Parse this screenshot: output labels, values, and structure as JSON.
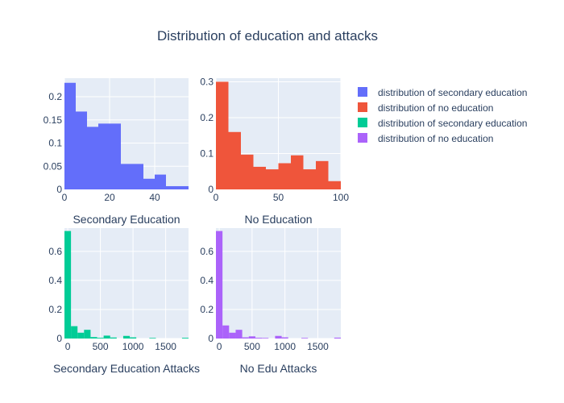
{
  "title": "Distribution of education and attacks",
  "chart_data": [
    {
      "type": "bar",
      "name": "secondary-education",
      "color": "#636efa",
      "xlabel": "Secondary Education",
      "xlim": [
        0,
        55
      ],
      "ylim": [
        0,
        0.24
      ],
      "xticks": [
        0,
        20,
        40
      ],
      "yticks": [
        0,
        0.05,
        0.1,
        0.15,
        0.2
      ],
      "ytick_labels": [
        "0",
        "0.05",
        "0.1",
        "0.15",
        "0.2"
      ],
      "bins": [
        [
          0,
          5,
          0.23
        ],
        [
          5,
          10,
          0.168
        ],
        [
          10,
          15,
          0.135
        ],
        [
          15,
          20,
          0.142
        ],
        [
          20,
          25,
          0.142
        ],
        [
          25,
          30,
          0.055
        ],
        [
          30,
          35,
          0.055
        ],
        [
          35,
          40,
          0.023
        ],
        [
          40,
          45,
          0.032
        ],
        [
          45,
          50,
          0.007
        ],
        [
          50,
          55,
          0.007
        ]
      ]
    },
    {
      "type": "bar",
      "name": "no-education",
      "color": "#ef553b",
      "xlabel": "No Education",
      "xlim": [
        0,
        100
      ],
      "ylim": [
        0,
        0.31
      ],
      "xticks": [
        0,
        50,
        100
      ],
      "yticks": [
        0,
        0.1,
        0.2,
        0.3
      ],
      "ytick_labels": [
        "0",
        "0.1",
        "0.2",
        "0.3"
      ],
      "bins": [
        [
          0,
          10,
          0.3
        ],
        [
          10,
          20,
          0.16
        ],
        [
          20,
          30,
          0.097
        ],
        [
          30,
          40,
          0.063
        ],
        [
          40,
          50,
          0.056
        ],
        [
          50,
          60,
          0.073
        ],
        [
          60,
          70,
          0.095
        ],
        [
          70,
          80,
          0.056
        ],
        [
          80,
          90,
          0.079
        ],
        [
          90,
          100,
          0.023
        ]
      ]
    },
    {
      "type": "bar",
      "name": "secondary-education-attacks",
      "color": "#00cc96",
      "xlabel": "Secondary Education Attacks",
      "xlim": [
        -50,
        1850
      ],
      "ylim": [
        0,
        0.76
      ],
      "xticks": [
        0,
        500,
        1000,
        1500
      ],
      "yticks": [
        0,
        0.2,
        0.4,
        0.6
      ],
      "ytick_labels": [
        "0",
        "0.2",
        "0.4",
        "0.6"
      ],
      "bins": [
        [
          -50,
          50,
          0.74
        ],
        [
          50,
          150,
          0.085
        ],
        [
          150,
          250,
          0.04
        ],
        [
          250,
          350,
          0.06
        ],
        [
          350,
          450,
          0.01
        ],
        [
          450,
          550,
          0.005
        ],
        [
          550,
          650,
          0.02
        ],
        [
          650,
          750,
          0.007
        ],
        [
          850,
          950,
          0.018
        ],
        [
          950,
          1050,
          0.008
        ],
        [
          1250,
          1350,
          0.004
        ],
        [
          1750,
          1850,
          0.005
        ]
      ]
    },
    {
      "type": "bar",
      "name": "no-edu-attacks",
      "color": "#ab63fa",
      "xlabel": "No Edu Attacks",
      "xlim": [
        -50,
        1850
      ],
      "ylim": [
        0,
        0.76
      ],
      "xticks": [
        0,
        500,
        1000,
        1500
      ],
      "yticks": [
        0,
        0.2,
        0.4,
        0.6
      ],
      "ytick_labels": [
        "0",
        "0.2",
        "0.4",
        "0.6"
      ],
      "bins": [
        [
          -50,
          50,
          0.74
        ],
        [
          50,
          150,
          0.09
        ],
        [
          150,
          250,
          0.04
        ],
        [
          250,
          350,
          0.06
        ],
        [
          350,
          450,
          0.008
        ],
        [
          450,
          550,
          0.015
        ],
        [
          550,
          650,
          0.005
        ],
        [
          650,
          750,
          0.004
        ],
        [
          850,
          950,
          0.018
        ],
        [
          950,
          1050,
          0.008
        ],
        [
          1250,
          1350,
          0.004
        ],
        [
          1750,
          1850,
          0.006
        ]
      ]
    }
  ],
  "legend": {
    "placement": "right",
    "items": [
      {
        "label": "distribution of secondary education",
        "color": "#636efa"
      },
      {
        "label": "distribution of no education",
        "color": "#ef553b"
      },
      {
        "label": "distribution of secondary education",
        "color": "#00cc96"
      },
      {
        "label": "distribution of no education",
        "color": "#ab63fa"
      }
    ]
  }
}
